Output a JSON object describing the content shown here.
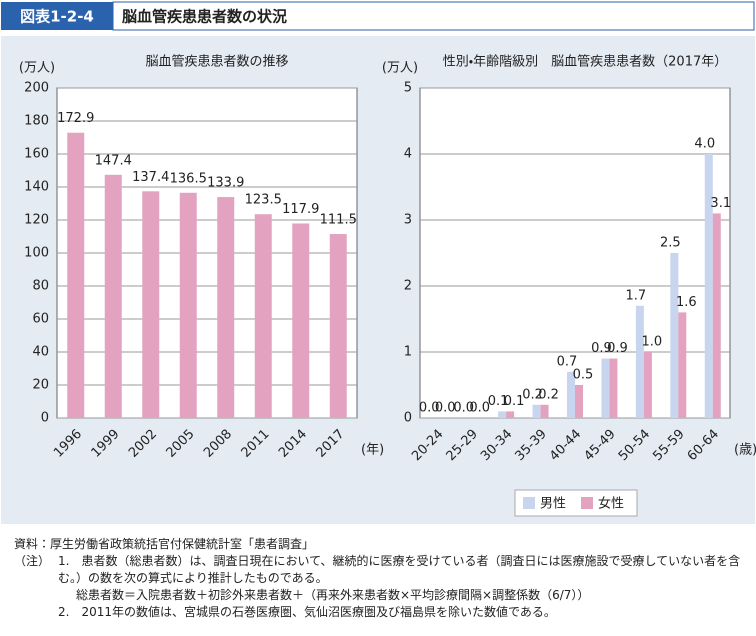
{
  "header": {
    "label": "図表1-2-4",
    "title": "脳血管疾患患者数の状況"
  },
  "chart_data": [
    {
      "type": "bar",
      "title": "脳血管疾患患者数の推移",
      "y_unit": "(万人)",
      "x_unit": "(年)",
      "categories": [
        "1996",
        "1999",
        "2002",
        "2005",
        "2008",
        "2011",
        "2014",
        "2017"
      ],
      "values": [
        172.9,
        147.4,
        137.4,
        136.5,
        133.9,
        123.5,
        117.9,
        111.5
      ],
      "color": "#e3a3c0",
      "ylim": [
        0,
        200
      ],
      "yticks": [
        0,
        20,
        40,
        60,
        80,
        100,
        120,
        140,
        160,
        180,
        200
      ],
      "grid": true
    },
    {
      "type": "grouped-bar",
      "title": "性別・年齢階級別　脳血管疾患患者数（2017年）",
      "y_unit": "(万人)",
      "x_unit": "(歳)",
      "categories": [
        "20-24",
        "25-29",
        "30-34",
        "35-39",
        "40-44",
        "45-49",
        "50-54",
        "55-59",
        "60-64"
      ],
      "series": [
        {
          "name": "男性",
          "color": "#c8d5ee",
          "values": [
            0,
            0,
            0.1,
            0.2,
            0.7,
            0.9,
            1.7,
            2.5,
            4
          ],
          "value_labels": [
            "0.0",
            "0.0",
            "0.1",
            "0.2",
            "0.7",
            "0.9",
            "1.7",
            "2.5",
            "4.0"
          ]
        },
        {
          "name": "女性",
          "color": "#e3a3c0",
          "values": [
            0,
            0,
            0.1,
            0.2,
            0.5,
            0.9,
            1,
            1.6,
            3.1
          ],
          "value_labels": [
            "0.0",
            "0.0",
            "0.1",
            "0.2",
            "0.5",
            "0.9",
            "1.0",
            "1.6",
            "3.1"
          ]
        }
      ],
      "ylim": [
        0,
        5
      ],
      "yticks": [
        0,
        1,
        2,
        3,
        4,
        5
      ],
      "grid": true,
      "legend": "bottom"
    }
  ],
  "notes": {
    "source": "資料：厚生労働省政策統括官付保健統計室「患者調査」",
    "note_label": "（注）",
    "items": [
      "1.　患者数（総患者数）は、調査日現在において、継続的に医療を受けている者（調査日には医療施設で受療していない者を含む。）の数を次の算式により推計したものである。",
      "総患者数＝入院患者数＋初診外来患者数＋（再来外来患者数×平均診療間隔×調整係数（6/7））",
      "2.　2011年の数値は、宮城県の石巻医療圏、気仙沼医療圏及び福島県を除いた数値である。"
    ]
  }
}
